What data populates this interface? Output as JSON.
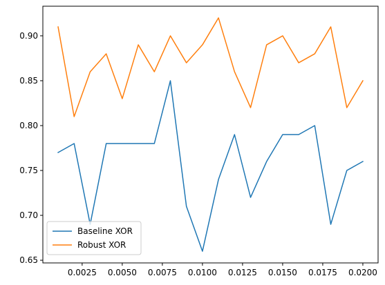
{
  "chart_data": {
    "type": "line",
    "title": "",
    "xlabel": "",
    "ylabel": "",
    "x": [
      0.001,
      0.002,
      0.003,
      0.004,
      0.005,
      0.006,
      0.007,
      0.008,
      0.009,
      0.01,
      0.011,
      0.012,
      0.013,
      0.014,
      0.015,
      0.016,
      0.017,
      0.018,
      0.019,
      0.02
    ],
    "series": [
      {
        "name": "Baseline XOR",
        "color": "#1f77b4",
        "values": [
          0.77,
          0.78,
          0.69,
          0.78,
          0.78,
          0.78,
          0.78,
          0.85,
          0.71,
          0.66,
          0.74,
          0.79,
          0.72,
          0.76,
          0.79,
          0.79,
          0.8,
          0.69,
          0.75,
          0.76
        ]
      },
      {
        "name": "Robust XOR",
        "color": "#ff7f0e",
        "values": [
          0.91,
          0.81,
          0.86,
          0.88,
          0.83,
          0.89,
          0.86,
          0.9,
          0.87,
          0.89,
          0.92,
          0.86,
          0.82,
          0.89,
          0.9,
          0.87,
          0.88,
          0.91,
          0.82,
          0.85
        ]
      }
    ],
    "xlim": [
      5e-05,
      0.02095
    ],
    "ylim": [
      0.647,
      0.933
    ],
    "xticks": [
      0.0025,
      0.005,
      0.0075,
      0.01,
      0.0125,
      0.015,
      0.0175,
      0.02
    ],
    "xtick_labels": [
      "0.0025",
      "0.0050",
      "0.0075",
      "0.0100",
      "0.0125",
      "0.0150",
      "0.0175",
      "0.0200"
    ],
    "yticks": [
      0.65,
      0.7,
      0.75,
      0.8,
      0.85,
      0.9
    ],
    "ytick_labels": [
      "0.65",
      "0.70",
      "0.75",
      "0.80",
      "0.85",
      "0.90"
    ],
    "grid": false,
    "legend_position": "lower-left"
  }
}
